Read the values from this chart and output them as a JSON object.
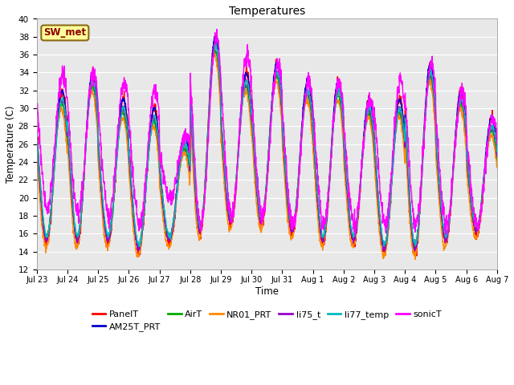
{
  "title": "Temperatures",
  "xlabel": "Time",
  "ylabel": "Temperature (C)",
  "ylim": [
    12,
    40
  ],
  "yticks": [
    12,
    14,
    16,
    18,
    20,
    22,
    24,
    26,
    28,
    30,
    32,
    34,
    36,
    38,
    40
  ],
  "x_labels": [
    "Jul 23",
    "Jul 24",
    "Jul 25",
    "Jul 26",
    "Jul 27",
    "Jul 28",
    "Jul 29",
    "Jul 30",
    "Jul 31",
    "Aug 1",
    "Aug 2",
    "Aug 3",
    "Aug 4",
    "Aug 5",
    "Aug 6",
    "Aug 7"
  ],
  "series_order": [
    "PanelT",
    "AM25T_PRT",
    "AirT",
    "NR01_PRT",
    "li75_t",
    "li77_temp",
    "sonicT"
  ],
  "series": {
    "PanelT": {
      "color": "#FF0000",
      "lw": 1.0
    },
    "AM25T_PRT": {
      "color": "#0000CC",
      "lw": 1.0
    },
    "AirT": {
      "color": "#00AA00",
      "lw": 1.0
    },
    "NR01_PRT": {
      "color": "#FF8800",
      "lw": 1.0
    },
    "li75_t": {
      "color": "#9900CC",
      "lw": 1.0
    },
    "li77_temp": {
      "color": "#00BBBB",
      "lw": 1.0
    },
    "sonicT": {
      "color": "#FF00FF",
      "lw": 1.0
    }
  },
  "annotation_text": "SW_met",
  "annotation_color": "#8B0000",
  "annotation_bg": "#FFFF99",
  "annotation_border": "#8B6914",
  "bg_color": "#E8E8E8",
  "fig_bg": "#FFFFFF",
  "n_days": 15,
  "ppd": 144,
  "daily_peaks": [
    32,
    34,
    31,
    30,
    27,
    38,
    34,
    35,
    33,
    33,
    31,
    31,
    35,
    32,
    29
  ],
  "sonic_peaks": [
    34,
    34,
    33,
    32,
    27,
    38,
    36,
    35,
    33,
    33,
    31,
    33,
    35,
    32,
    29
  ],
  "daily_mins": [
    15,
    15,
    15,
    14,
    15,
    16,
    17,
    17,
    16,
    15,
    15,
    14,
    14,
    15,
    16
  ],
  "sonic_mins": [
    19,
    18,
    18,
    17,
    20,
    17,
    18,
    18,
    17,
    17,
    17,
    17,
    17,
    17,
    17
  ]
}
